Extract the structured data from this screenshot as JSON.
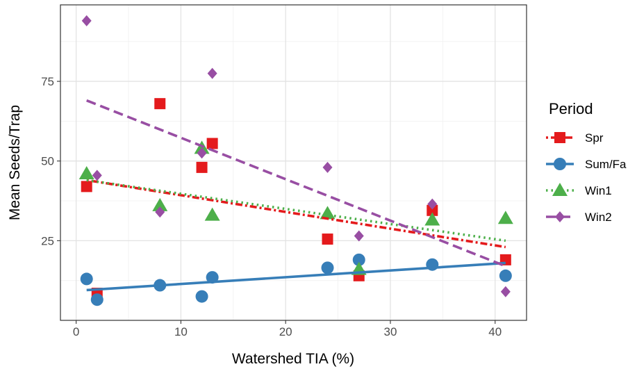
{
  "chart_data": {
    "type": "scatter",
    "xlabel": "Watershed TIA (%)",
    "ylabel": "Mean Seeds/Trap",
    "xlim": [
      -1.5,
      43
    ],
    "ylim": [
      0,
      99
    ],
    "x_ticks": [
      0,
      10,
      20,
      30,
      40
    ],
    "y_ticks": [
      25,
      50,
      75
    ],
    "grid": true,
    "legend_title": "Period",
    "legend_position": "right",
    "series": [
      {
        "name": "Spr",
        "color": "#e41a1c",
        "marker": "square",
        "line_style": "dashdot",
        "points": [
          [
            1,
            42
          ],
          [
            2,
            8.5
          ],
          [
            8,
            68
          ],
          [
            12,
            48
          ],
          [
            13,
            55.5
          ],
          [
            24,
            25.5
          ],
          [
            27,
            14
          ],
          [
            34,
            34.5
          ],
          [
            41,
            19
          ]
        ],
        "trend": [
          [
            1,
            44
          ],
          [
            41,
            23
          ]
        ]
      },
      {
        "name": "Sum/Fa",
        "color": "#377eb8",
        "marker": "circle",
        "line_style": "solid",
        "points": [
          [
            1,
            13
          ],
          [
            2,
            6.5
          ],
          [
            8,
            11
          ],
          [
            12,
            7.5
          ],
          [
            13,
            13.5
          ],
          [
            24,
            16.5
          ],
          [
            27,
            19
          ],
          [
            34,
            17.5
          ],
          [
            41,
            14
          ]
        ],
        "trend": [
          [
            1,
            9.5
          ],
          [
            41,
            18
          ]
        ]
      },
      {
        "name": "Win1",
        "color": "#4daf4a",
        "marker": "triangle",
        "line_style": "dotted",
        "points": [
          [
            1,
            46
          ],
          [
            8,
            36
          ],
          [
            12,
            54
          ],
          [
            13,
            33
          ],
          [
            24,
            33.5
          ],
          [
            27,
            16
          ],
          [
            34,
            31.5
          ],
          [
            41,
            32
          ]
        ],
        "trend": [
          [
            1,
            44
          ],
          [
            41,
            25
          ]
        ]
      },
      {
        "name": "Win2",
        "color": "#984ea3",
        "marker": "diamond",
        "line_style": "dashed",
        "points": [
          [
            1,
            94
          ],
          [
            2,
            45.5
          ],
          [
            8,
            34
          ],
          [
            12,
            52.5
          ],
          [
            13,
            77.5
          ],
          [
            24,
            48
          ],
          [
            27,
            26.5
          ],
          [
            34,
            36.5
          ],
          [
            41,
            9
          ]
        ],
        "trend": [
          [
            1,
            69
          ],
          [
            41,
            17
          ]
        ]
      }
    ]
  }
}
